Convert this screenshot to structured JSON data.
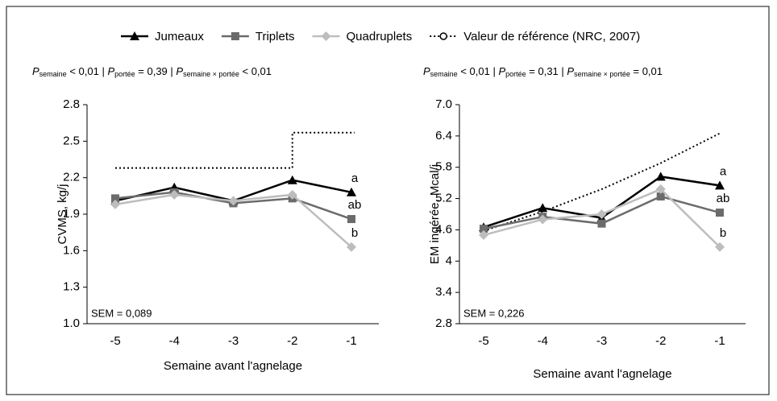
{
  "chart_data": [
    {
      "type": "line",
      "ylabel": "CVMS, kg/j",
      "xlabel": "Semaine avant l'agnelage",
      "stats": [
        {
          "symbol": "P",
          "sub": "semaine",
          "text": "< 0,01"
        },
        {
          "symbol": "P",
          "sub": "portée",
          "text": "= 0,39"
        },
        {
          "symbol": "P",
          "sub": "semaine × portée",
          "text": "< 0,01"
        }
      ],
      "annotation": "SEM = 0,089",
      "categories": [
        "-5",
        "-4",
        "-3",
        "-2",
        "-1"
      ],
      "ylim": [
        1.0,
        2.8
      ],
      "yticks": [
        {
          "value": 1.0,
          "label": "1.0"
        },
        1.3,
        1.6,
        1.9,
        2.2,
        2.5,
        2.8
      ],
      "series": [
        {
          "name": "Jumeaux",
          "color": "#000000",
          "marker": "triangle",
          "values": [
            2.01,
            2.12,
            2.01,
            2.18,
            2.08
          ],
          "point_label": "a"
        },
        {
          "name": "Triplets",
          "color": "#6b6b6b",
          "marker": "square",
          "values": [
            2.03,
            2.08,
            1.99,
            2.03,
            1.86
          ],
          "point_label": "ab"
        },
        {
          "name": "Quadruplets",
          "color": "#bdbdbd",
          "marker": "diamond",
          "values": [
            1.98,
            2.06,
            2.01,
            2.06,
            1.63
          ],
          "point_label": "b"
        },
        {
          "name": "Valeur de référence (NRC, 2007)",
          "color": "#000000",
          "marker": "circle",
          "dash": "dotted",
          "drawstyle": "steps",
          "values": [
            2.28,
            2.28,
            2.28,
            2.28,
            2.57
          ]
        }
      ]
    },
    {
      "type": "line",
      "ylabel": "EM ingérée, Mcal/j",
      "xlabel": "Semaine avant l'agnelage",
      "stats": [
        {
          "symbol": "P",
          "sub": "semaine",
          "text": "< 0,01"
        },
        {
          "symbol": "P",
          "sub": "portée",
          "text": "= 0,31"
        },
        {
          "symbol": "P",
          "sub": "semaine × portée",
          "text": "= 0,01"
        }
      ],
      "annotation": "SEM = 0,226",
      "categories": [
        "-5",
        "-4",
        "-3",
        "-2",
        "-1"
      ],
      "ylim": [
        2.8,
        7.0
      ],
      "yticks": [
        2.8,
        3.4,
        4.0,
        4.6,
        5.2,
        5.8,
        6.4,
        {
          "value": 7.0,
          "label": "7.0"
        }
      ],
      "series": [
        {
          "color": "#000000",
          "marker": "triangle",
          "values": [
            4.65,
            5.02,
            4.83,
            5.62,
            5.45
          ],
          "point_label": "a"
        },
        {
          "color": "#6b6b6b",
          "marker": "square",
          "values": [
            4.62,
            4.85,
            4.72,
            5.24,
            4.93
          ],
          "point_label": "ab"
        },
        {
          "color": "#bdbdbd",
          "marker": "diamond",
          "values": [
            4.5,
            4.8,
            4.9,
            5.38,
            4.27
          ],
          "point_label": "b"
        },
        {
          "color": "#000000",
          "dash": "dotted",
          "values": [
            4.58,
            4.95,
            5.38,
            5.88,
            6.45
          ]
        }
      ]
    }
  ]
}
